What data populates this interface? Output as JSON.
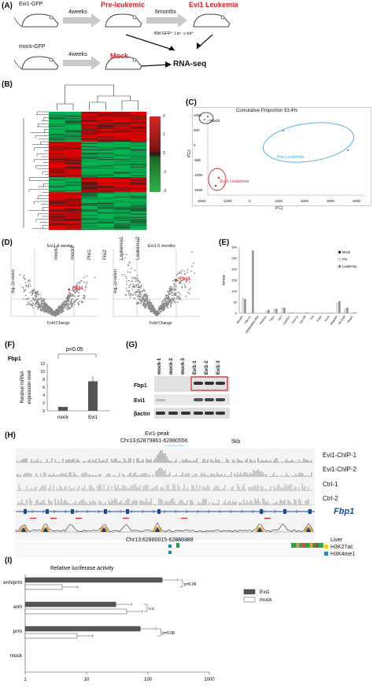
{
  "panels": {
    "A": "(A)",
    "B": "(B)",
    "C": "(C)",
    "D": "(D)",
    "E": "(E)",
    "F": "(F)",
    "G": "(G)",
    "H": "(H)",
    "I": "(I)"
  },
  "panelA": {
    "evi1_gfp": "Evi1-GFP",
    "mock_gfp": "mock-GFP",
    "weeks4a": "4weeks",
    "weeks4b": "4weeks",
    "months6": "6months",
    "preleukemic": "Pre-leukemic",
    "evi1_leukemia": "Evi1 Leukemia",
    "mock": "Mock",
    "rnaseq": "RNA-seq",
    "bm_label": "BM GFP⁺ Lin⁻ c-kit⁺"
  },
  "panelB": {
    "columns": [
      "mock1",
      "mock2",
      "Pre1",
      "Pre2",
      "Leukemia1",
      "Leukemia2"
    ],
    "scale": [
      "2",
      "1",
      "0",
      "-1",
      "-2"
    ]
  },
  "panelC": {
    "title": "Cumulative Proportion 93.4%",
    "mock": "mock",
    "pre": "Pre-Leukemia",
    "leuk": "Evi1 Leukemia",
    "xlabel": "PC1",
    "ylabel": "PC2",
    "xticks": [
      "-2000",
      "-1000",
      "0",
      "1000",
      "2000",
      "3000",
      "4000"
    ],
    "yticks": [
      "1000",
      "500",
      "0",
      "-500",
      "-1000",
      "-1500"
    ]
  },
  "panelD": {
    "left_title": "Evi1 4 weeks",
    "right_title": "Evi1 6 months",
    "xlabel": "Fold Change",
    "ylabel": "-log₁₀(p-value)",
    "gene": "Fbp1"
  },
  "chart_data": [
    {
      "type": "bar",
      "id": "E",
      "ylabel": "RPKM",
      "ylim": [
        0,
        300
      ],
      "yticks": [
        "300",
        "250",
        "200",
        "150",
        "100",
        "50",
        "0"
      ],
      "categories": [
        "Mecom",
        "Hba-a1",
        "D930028M14Rik",
        "Plekhs1",
        "Fbp1",
        "Slc7",
        "Cdd00r1",
        "Fcer1a",
        "Gpr180",
        "Srd",
        "Pon2",
        "Pax5",
        "Mrgprb2",
        "Slc16a8",
        "Hmof1"
      ],
      "series": [
        {
          "name": "Mock",
          "values": [
            0,
            0,
            0,
            0,
            0,
            0,
            0,
            0,
            0,
            0,
            0,
            0,
            0,
            0,
            0
          ]
        },
        {
          "name": "Pre",
          "values": [
            70,
            0,
            0,
            10,
            20,
            25,
            3,
            2,
            3,
            2,
            2,
            2,
            50,
            20,
            3
          ]
        },
        {
          "name": "Leukemia",
          "values": [
            65,
            285,
            0,
            15,
            20,
            25,
            3,
            2,
            3,
            2,
            2,
            2,
            55,
            25,
            3
          ]
        }
      ]
    },
    {
      "type": "bar",
      "id": "F",
      "title": "Fbp1",
      "ylabel": "Relative mRNA expression level",
      "ylim": [
        0,
        12
      ],
      "yticks": [
        "12",
        "10",
        "8",
        "6",
        "4",
        "2",
        "0"
      ],
      "categories": [
        "mock",
        "Evi1"
      ],
      "values": [
        1,
        7.5
      ],
      "annotation": "p<0.05"
    },
    {
      "type": "bar",
      "id": "I",
      "title": "Relative luciferase activity",
      "xscale": "log",
      "xlim": [
        1,
        1000
      ],
      "xticks": [
        "1",
        "10",
        "100",
        "1000"
      ],
      "categories": [
        "enh/prm",
        "enh",
        "prm",
        "mock"
      ],
      "series": [
        {
          "name": "Evi1",
          "values": [
            170,
            30,
            75,
            1
          ]
        },
        {
          "name": "mock",
          "values": [
            4,
            45,
            7,
            1
          ]
        }
      ],
      "pvalues": [
        "p=0.06",
        "n.s.",
        "p=0.08"
      ]
    }
  ],
  "panelG": {
    "lanes": [
      "mock-1",
      "mock-2",
      "mock-3",
      "Evi1-1",
      "Evi1-2",
      "Evi1-3"
    ],
    "rows": [
      "Fbp1",
      "Evi1",
      "βactin"
    ]
  },
  "panelH": {
    "peak": "Evi1-peak",
    "coord1": "Chr13;62879861-62880556",
    "scale": "5kb",
    "tracks": [
      "Evi1-ChIP-1",
      "Evi1-ChIP-2",
      "Ctrl-1",
      "Ctrl-2"
    ],
    "gene": "Fbp1",
    "coord2": "Chr13;62880015-62880388",
    "liver": "Liver",
    "mark1": "H3K27ac",
    "mark2": "H3K4me1"
  }
}
